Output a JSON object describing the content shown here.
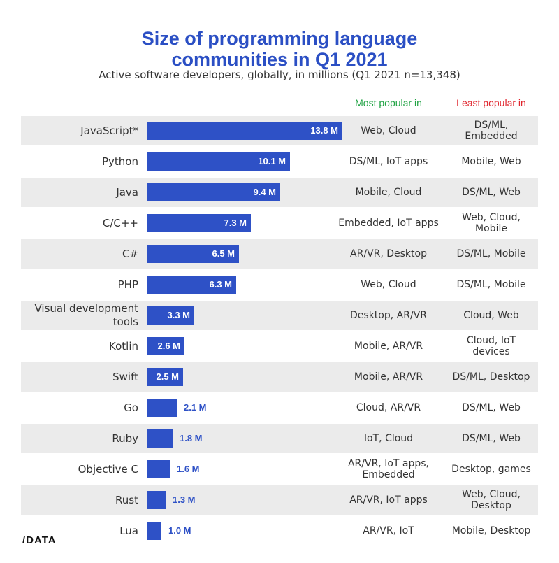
{
  "title_line1": "Size of programming language",
  "title_line2": "communities in Q1 2021",
  "subtitle": "Active software developers, globally, in millions (Q1 2021 n=13,348)",
  "columns": {
    "most": "Most popular in",
    "least": "Least popular in"
  },
  "logo": "/DATA",
  "colors": {
    "bar": "#2e51c6",
    "title": "#2b4fc4",
    "most": "#21a344",
    "least": "#e0242c",
    "row_shade": "#ebebeb"
  },
  "chart_data": {
    "type": "bar",
    "orientation": "horizontal",
    "title": "Size of programming language communities in Q1 2021",
    "subtitle": "Active software developers, globally, in millions (Q1 2021 n=13,348)",
    "categories": [
      "JavaScript*",
      "Python",
      "Java",
      "C/C++",
      "C#",
      "PHP",
      "Visual development tools",
      "Kotlin",
      "Swift",
      "Go",
      "Ruby",
      "Objective C",
      "Rust",
      "Lua"
    ],
    "values": [
      13.8,
      10.1,
      9.4,
      7.3,
      6.5,
      6.3,
      3.3,
      2.6,
      2.5,
      2.1,
      1.8,
      1.6,
      1.3,
      1.0
    ],
    "value_labels": [
      "13.8 M",
      "10.1 M",
      "9.4 M",
      "7.3 M",
      "6.5 M",
      "6.3 M",
      "3.3 M",
      "2.6 M",
      "2.5 M",
      "2.1 M",
      "1.8 M",
      "1.6 M",
      "1.3 M",
      "1.0 M"
    ],
    "most_popular_in": [
      "Web, Cloud",
      "DS/ML, IoT apps",
      "Mobile, Cloud",
      "Embedded, IoT apps",
      "AR/VR, Desktop",
      "Web, Cloud",
      "Desktop, AR/VR",
      "Mobile, AR/VR",
      "Mobile, AR/VR",
      "Cloud, AR/VR",
      "IoT, Cloud",
      "AR/VR, IoT apps, Embedded",
      "AR/VR, IoT apps",
      "AR/VR, IoT"
    ],
    "least_popular_in": [
      "DS/ML, Embedded",
      "Mobile, Web",
      "DS/ML, Web",
      "Web, Cloud, Mobile",
      "DS/ML, Mobile",
      "DS/ML, Mobile",
      "Cloud, Web",
      "Cloud, IoT devices",
      "DS/ML, Desktop",
      "DS/ML, Web",
      "DS/ML, Web",
      "Desktop, games",
      "Web, Cloud, Desktop",
      "Mobile, Desktop"
    ],
    "xlim": [
      0,
      13.8
    ],
    "grid": false,
    "legend": "none"
  }
}
